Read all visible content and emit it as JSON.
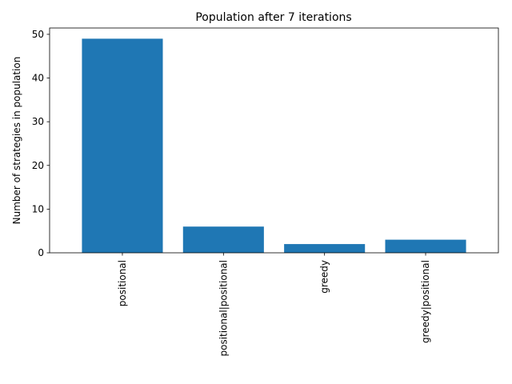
{
  "chart_data": {
    "type": "bar",
    "title": "Population after 7 iterations",
    "xlabel": "",
    "ylabel": "Number of strategies in population",
    "categories": [
      "positional",
      "positional|positional",
      "greedy",
      "greedy|positional"
    ],
    "values": [
      49,
      6,
      2,
      3
    ],
    "ylim": [
      0,
      51.45
    ],
    "yticks": [
      0,
      10,
      20,
      30,
      40,
      50
    ],
    "bar_color": "#1f77b4",
    "grid": false,
    "legend": "none",
    "xtick_rotation": "vertical"
  }
}
